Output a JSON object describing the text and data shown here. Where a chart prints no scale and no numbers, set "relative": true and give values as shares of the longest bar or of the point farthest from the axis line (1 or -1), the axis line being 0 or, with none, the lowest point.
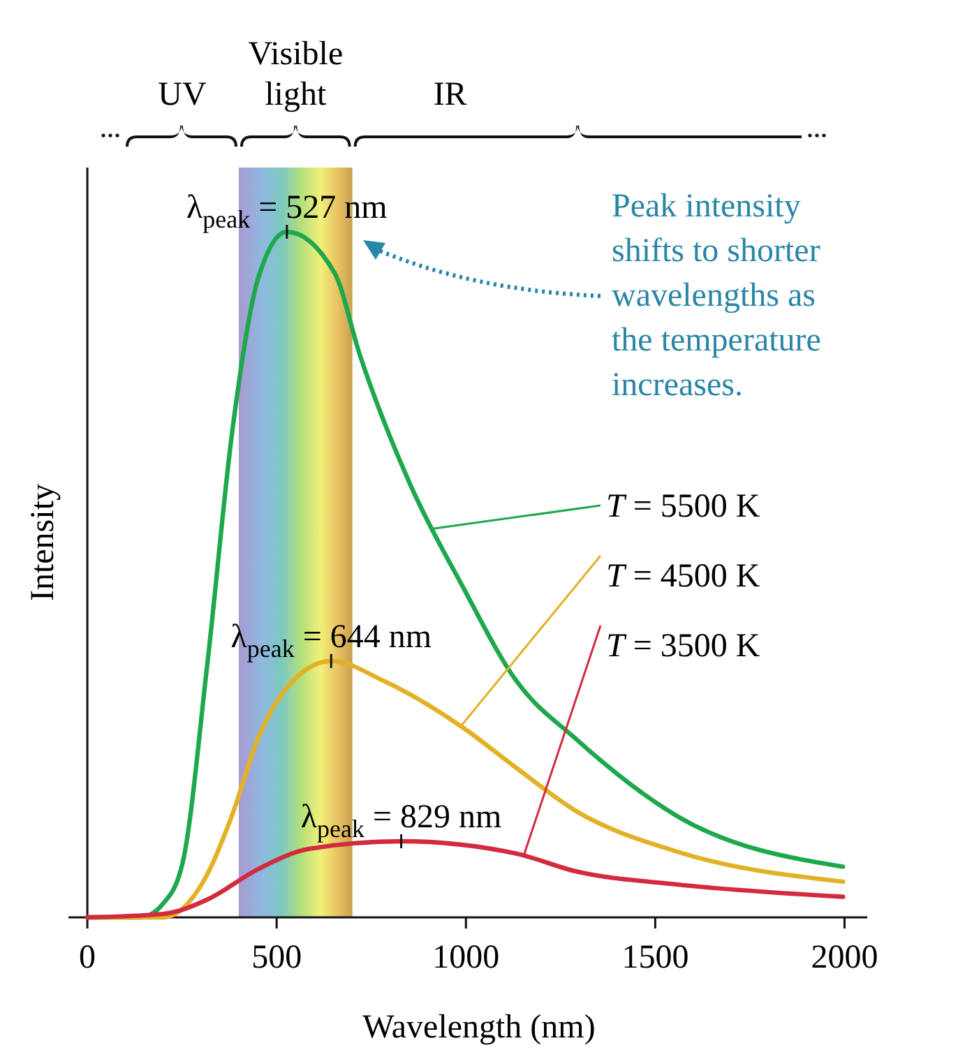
{
  "chart_data": {
    "type": "line",
    "relative": true,
    "xlabel": "Wavelength (nm)",
    "ylabel": "Intensity",
    "xlim": [
      -50,
      2060
    ],
    "xticks": [
      0,
      500,
      1000,
      1500,
      2000
    ],
    "legend": "right",
    "marker": "none",
    "line_style": "solid",
    "series": [
      {
        "name": "T = 5500 K",
        "color": "#1ea84c",
        "x": [
          0,
          140,
          200,
          251,
          317,
          383,
          450,
          527,
          653,
          720,
          854,
          989,
          1133,
          1291,
          1557,
          1996
        ],
        "values": [
          0,
          0,
          0.02,
          0.078,
          0.37,
          0.71,
          0.93,
          1,
          0.94,
          0.82,
          0.63,
          0.485,
          0.345,
          0.26,
          0.148,
          0.074
        ]
      },
      {
        "name": "T = 4500 K",
        "color": "#e2b126",
        "x": [
          0,
          200,
          317,
          383,
          450,
          520,
          644,
          786,
          989,
          1133,
          1291,
          1557,
          1996
        ],
        "values": [
          0,
          0,
          0.063,
          0.15,
          0.26,
          0.33,
          0.374,
          0.344,
          0.278,
          0.218,
          0.155,
          0.096,
          0.052
        ]
      },
      {
        "name": "T = 3500 K",
        "color": "#d42a3e",
        "x": [
          0,
          200,
          317,
          450,
          586,
          829,
          1133,
          1291,
          1557,
          1996
        ],
        "values": [
          0,
          0.005,
          0.026,
          0.07,
          0.1,
          0.111,
          0.093,
          0.067,
          0.048,
          0.03
        ]
      }
    ],
    "bands": [
      {
        "axis": "x",
        "from": 400,
        "to": 700,
        "label": "Visible light"
      }
    ],
    "annotations": [
      "UV",
      "IR",
      "Peak intensity shifts to shorter wavelengths as the temperature increases.",
      {
        "text": "λ$_{peak}$ = 527 nm",
        "x": 527,
        "y": 1
      },
      {
        "text": "λ$_{peak}$ = 644 nm",
        "x": 644,
        "y": 0.374
      },
      {
        "text": "λ$_{peak}$ = 829 nm",
        "x": 829,
        "y": 0.111
      }
    ]
  }
}
